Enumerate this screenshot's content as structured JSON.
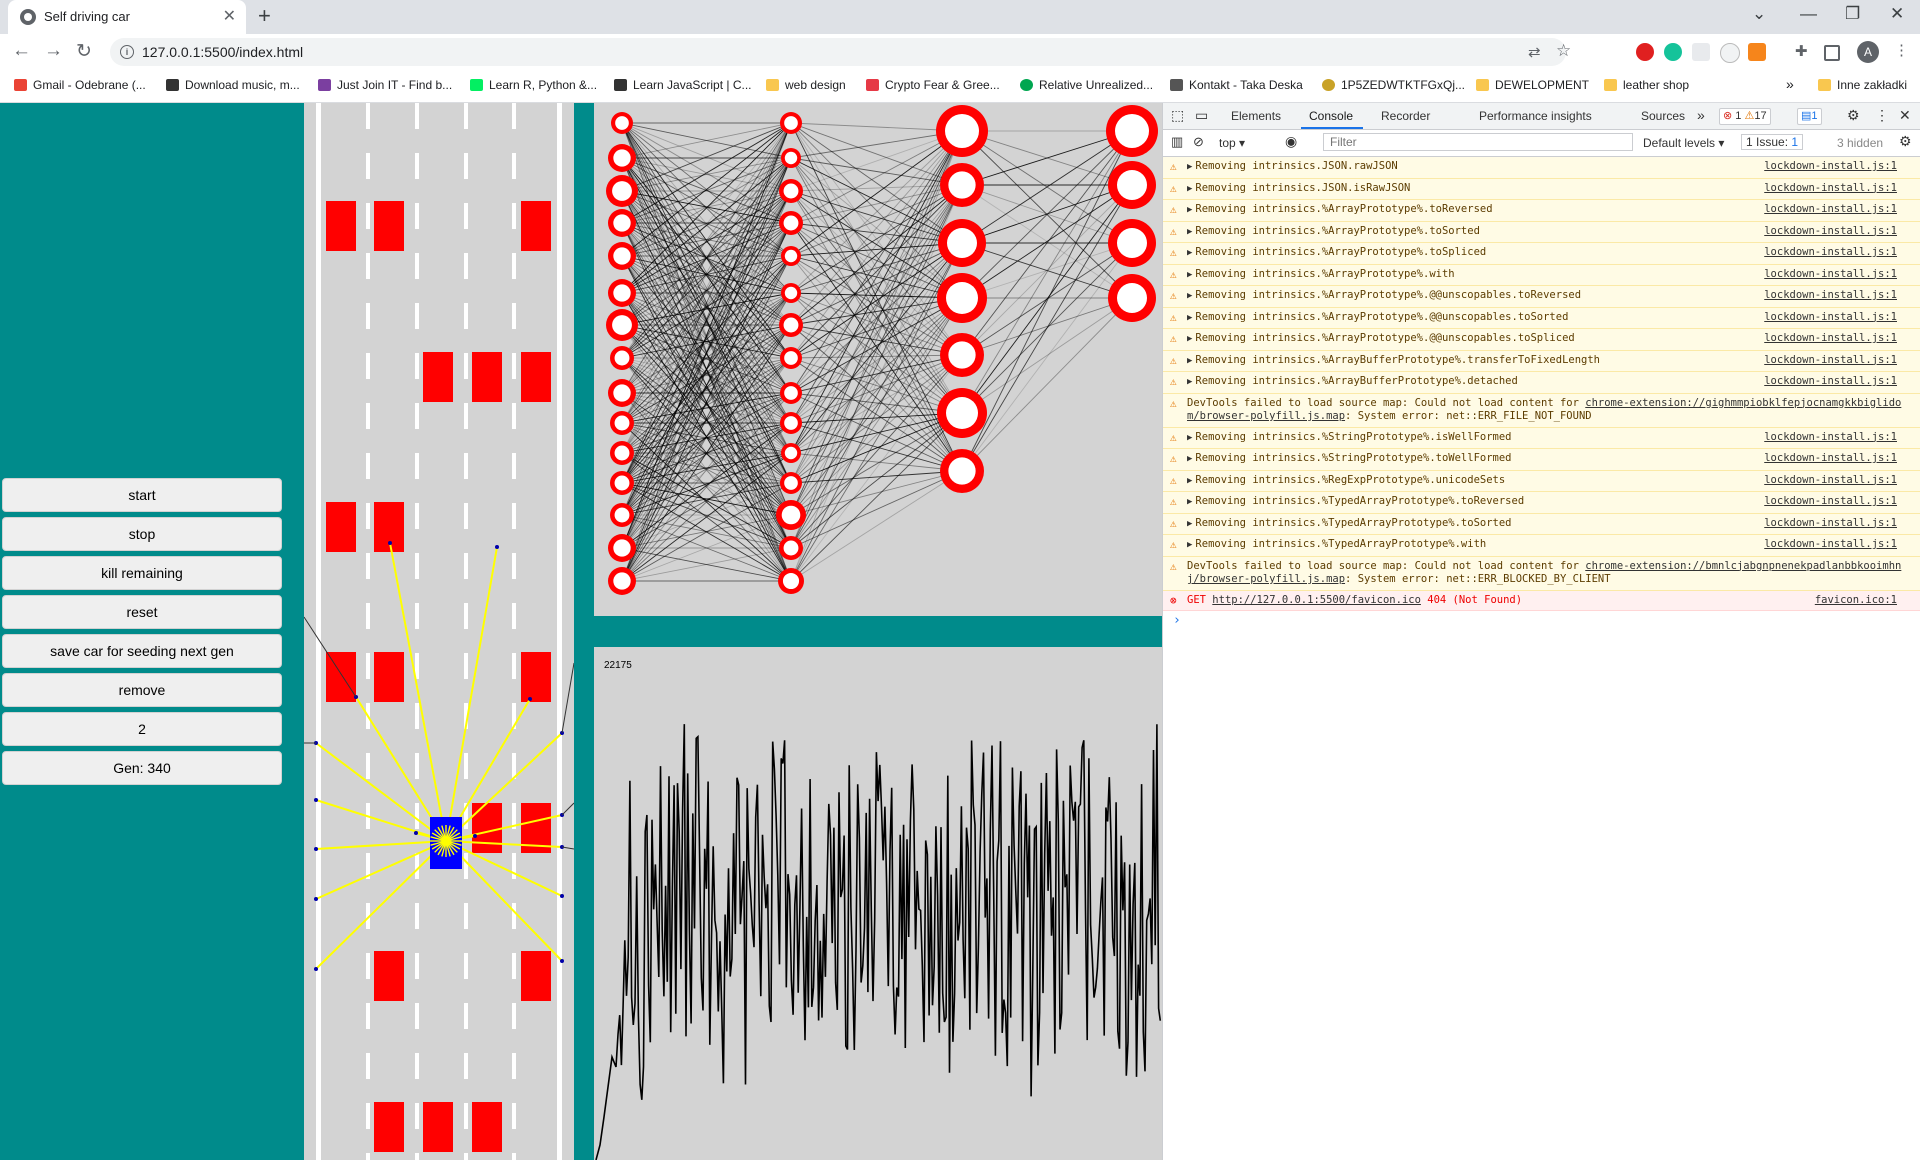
{
  "browser": {
    "tab_title": "Self driving car",
    "tab_close": "✕",
    "new_tab": "+",
    "url": "127.0.0.1:5500/index.html",
    "bookmarks": [
      {
        "label": "Gmail - Odebrane (...",
        "color": "#ea4335"
      },
      {
        "label": "Download music, m...",
        "color": "#333333"
      },
      {
        "label": "Just Join IT - Find b...",
        "color": "#7b3fa0"
      },
      {
        "label": "Learn R, Python &...",
        "color": "#03ef62"
      },
      {
        "label": "Learn JavaScript | C...",
        "color": "#333333"
      },
      {
        "label": "web design",
        "color": "#f9c74f"
      },
      {
        "label": "Crypto Fear & Gree...",
        "color": "#e63946"
      },
      {
        "label": "Relative Unrealized...",
        "color": "#00a650"
      },
      {
        "label": "Kontakt - Taka Deska",
        "color": "#555555"
      },
      {
        "label": "1P5ZEDWTKTFGxQj...",
        "color": "#c9a227"
      },
      {
        "label": "DEWELOPMENT",
        "color": "#f9c74f"
      },
      {
        "label": "leather shop",
        "color": "#f9c74f"
      }
    ],
    "bookmarks_more": "»",
    "other_bookmarks": "Inne zakładki",
    "profile_initial": "A"
  },
  "controls": {
    "buttons": [
      "start",
      "stop",
      "kill remaining",
      "reset",
      "save car for seeding next gen",
      "remove",
      "2",
      "Gen: 340"
    ]
  },
  "fitness_chart": {
    "label": "22175"
  },
  "devtools": {
    "tabs": [
      "Elements",
      "Console",
      "Recorder",
      "Performance insights",
      "Sources"
    ],
    "more_tabs": "»",
    "error_count": "1",
    "warning_count": "17",
    "info_count": "1",
    "context": "top",
    "filter_placeholder": "Filter",
    "levels": "Default levels",
    "issues": "1 Issue:",
    "issues_count": "1",
    "hidden": "3 hidden",
    "messages": [
      {
        "type": "warn",
        "text": "Removing intrinsics.JSON.rawJSON",
        "src": "lockdown-install.js:1"
      },
      {
        "type": "warn",
        "text": "Removing intrinsics.JSON.isRawJSON",
        "src": "lockdown-install.js:1"
      },
      {
        "type": "warn",
        "text": "Removing intrinsics.%ArrayPrototype%.toReversed",
        "src": "lockdown-install.js:1"
      },
      {
        "type": "warn",
        "text": "Removing intrinsics.%ArrayPrototype%.toSorted",
        "src": "lockdown-install.js:1"
      },
      {
        "type": "warn",
        "text": "Removing intrinsics.%ArrayPrototype%.toSpliced",
        "src": "lockdown-install.js:1"
      },
      {
        "type": "warn",
        "text": "Removing intrinsics.%ArrayPrototype%.with",
        "src": "lockdown-install.js:1"
      },
      {
        "type": "warn",
        "text": "Removing intrinsics.%ArrayPrototype%.@@unscopables.toReversed",
        "src": "lockdown-install.js:1"
      },
      {
        "type": "warn",
        "text": "Removing intrinsics.%ArrayPrototype%.@@unscopables.toSorted",
        "src": "lockdown-install.js:1"
      },
      {
        "type": "warn",
        "text": "Removing intrinsics.%ArrayPrototype%.@@unscopables.toSpliced",
        "src": "lockdown-install.js:1"
      },
      {
        "type": "warn",
        "text": "Removing intrinsics.%ArrayBufferPrototype%.transferToFixedLength",
        "src": "lockdown-install.js:1"
      },
      {
        "type": "warn",
        "text": "Removing intrinsics.%ArrayBufferPrototype%.detached",
        "src": "lockdown-install.js:1"
      },
      {
        "type": "warn-block",
        "text": "DevTools failed to load source map: Could not load content for ",
        "link": "chrome-extension://gighmmpiobklfepjocnamgkkbiglidom/browser-polyfill.js.map",
        "tail": ": System error: net::ERR_FILE_NOT_FOUND"
      },
      {
        "type": "warn",
        "text": "Removing intrinsics.%StringPrototype%.isWellFormed",
        "src": "lockdown-install.js:1"
      },
      {
        "type": "warn",
        "text": "Removing intrinsics.%StringPrototype%.toWellFormed",
        "src": "lockdown-install.js:1"
      },
      {
        "type": "warn",
        "text": "Removing intrinsics.%RegExpPrototype%.unicodeSets",
        "src": "lockdown-install.js:1"
      },
      {
        "type": "warn",
        "text": "Removing intrinsics.%TypedArrayPrototype%.toReversed",
        "src": "lockdown-install.js:1"
      },
      {
        "type": "warn",
        "text": "Removing intrinsics.%TypedArrayPrototype%.toSorted",
        "src": "lockdown-install.js:1"
      },
      {
        "type": "warn",
        "text": "Removing intrinsics.%TypedArrayPrototype%.with",
        "src": "lockdown-install.js:1"
      },
      {
        "type": "warn-block",
        "text": "DevTools failed to load source map: Could not load content for ",
        "link": "chrome-extension://bmnlcjabgnpnenekpadlanbbkooimhnj/browser-polyfill.js.map",
        "tail": ": System error: net::ERR_BLOCKED_BY_CLIENT"
      },
      {
        "type": "error",
        "method": "GET",
        "link": "http://127.0.0.1:5500/favicon.ico",
        "tail": " 404 (Not Found)",
        "src": "favicon.ico:1"
      }
    ],
    "prompt": "›"
  }
}
